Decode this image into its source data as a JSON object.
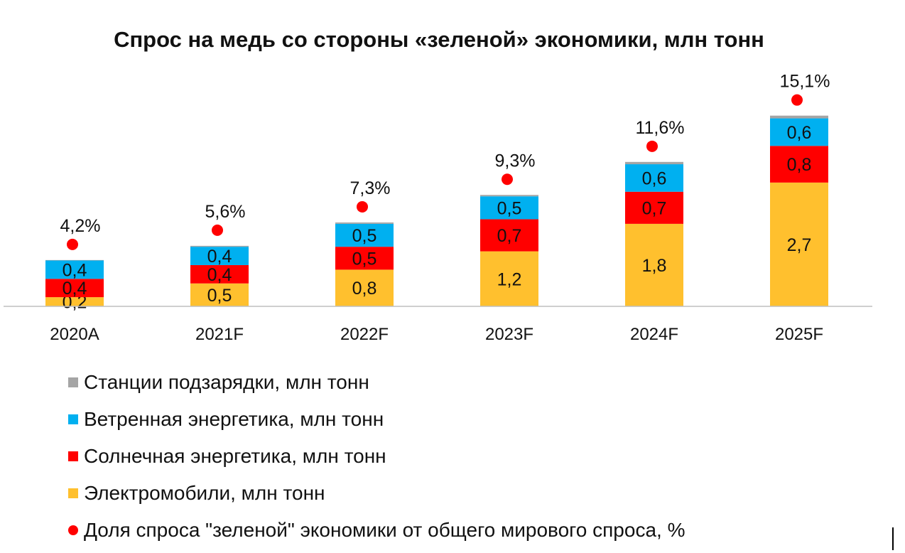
{
  "chart_data": {
    "type": "bar",
    "stacked": true,
    "title": "Спрос на медь со стороны «зеленой» экономики, млн тонн",
    "categories": [
      "2020A",
      "2021F",
      "2022F",
      "2023F",
      "2024F",
      "2025F"
    ],
    "ylim": [
      0,
      4.5
    ],
    "series": [
      {
        "name": "Электромобили, млн тонн",
        "color": "#FFC02E",
        "values": [
          0.2,
          0.5,
          0.8,
          1.2,
          1.8,
          2.7
        ],
        "labels": [
          "0,2",
          "0,5",
          "0,8",
          "1,2",
          "1,8",
          "2,7"
        ]
      },
      {
        "name": "Солнечная энергетика, млн тонн",
        "color": "#FF0000",
        "values": [
          0.4,
          0.4,
          0.5,
          0.7,
          0.7,
          0.8
        ],
        "labels": [
          "0,4",
          "0,4",
          "0,5",
          "0,7",
          "0,7",
          "0,8"
        ]
      },
      {
        "name": "Ветренная энергетика, млн тонн",
        "color": "#00B0F0",
        "values": [
          0.4,
          0.4,
          0.5,
          0.5,
          0.6,
          0.6
        ],
        "labels": [
          "0,4",
          "0,4",
          "0,5",
          "0,5",
          "0,6",
          "0,6"
        ]
      },
      {
        "name": "Станции подзарядки, млн тонн",
        "color": "#A5A5A5",
        "values": [
          0.01,
          0.02,
          0.03,
          0.03,
          0.05,
          0.06
        ],
        "labels": [
          "",
          "",
          "",
          "",
          "",
          ""
        ]
      }
    ],
    "share": {
      "name": "Доля спроса \"зеленой\" экономики от общего мирового спроса, %",
      "color": "#FF0000",
      "values": [
        4.2,
        5.6,
        7.3,
        9.3,
        11.6,
        15.1
      ],
      "labels": [
        "4,2%",
        "5,6%",
        "7,3%",
        "9,3%",
        "11,6%",
        "15,1%"
      ]
    },
    "legend": [
      {
        "name": "Станции подзарядки, млн тонн",
        "color": "#A5A5A5",
        "marker": "square"
      },
      {
        "name": "Ветренная энергетика, млн тонн",
        "color": "#00B0F0",
        "marker": "square"
      },
      {
        "name": "Солнечная энергетика, млн тонн",
        "color": "#FF0000",
        "marker": "square"
      },
      {
        "name": "Электромобили, млн тонн",
        "color": "#FFC02E",
        "marker": "square"
      },
      {
        "name": "Доля спроса \"зеленой\" экономики от общего мирового спроса, %",
        "color": "#FF0000",
        "marker": "dot"
      }
    ],
    "axis_color": "#BFBFBF"
  }
}
